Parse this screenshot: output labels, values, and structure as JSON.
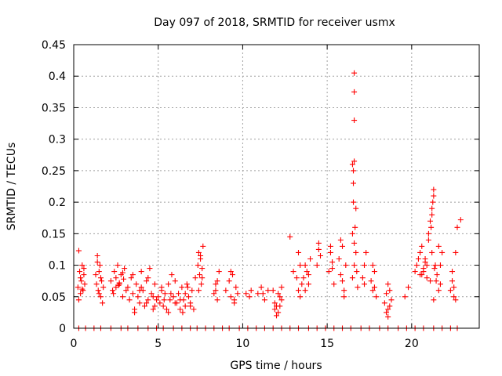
{
  "chart_data": {
    "type": "scatter",
    "title": "Day 097 of 2018, SRMTID for receiver usmx",
    "xlabel": "GPS time / hours",
    "ylabel": "SRMTID / TECUs",
    "xlim": [
      0,
      24
    ],
    "ylim": [
      0,
      0.45
    ],
    "xticks": [
      0,
      5,
      10,
      15,
      20
    ],
    "xtick_labels": [
      "0",
      "5",
      "10",
      "15",
      "20"
    ],
    "yticks": [
      0,
      0.05,
      0.1,
      0.15,
      0.2,
      0.25,
      0.3,
      0.35,
      0.4,
      0.45
    ],
    "ytick_labels": [
      "0",
      "0.05",
      "0.1",
      "0.15",
      "0.2",
      "0.25",
      "0.3",
      "0.35",
      "0.4",
      "0.45"
    ],
    "grid": true,
    "marker": "+",
    "color": "#ff0000",
    "series": [
      {
        "name": "SRMTID",
        "x": [
          0.25,
          0.3,
          0.35,
          0.4,
          0.45,
          0.5,
          0.55,
          0.6,
          0.65,
          0.3,
          0.4,
          0.5,
          0.6,
          1.3,
          1.35,
          1.4,
          1.45,
          1.5,
          1.55,
          1.6,
          1.65,
          1.7,
          1.75,
          1.4,
          1.5,
          1.6,
          2.2,
          2.3,
          2.4,
          2.5,
          2.6,
          2.7,
          2.8,
          2.9,
          3.0,
          3.1,
          2.5,
          2.7,
          2.9,
          2.35,
          2.65,
          2.95,
          3.2,
          3.3,
          3.4,
          3.5,
          3.6,
          3.7,
          3.8,
          3.9,
          4.0,
          4.1,
          4.2,
          4.3,
          4.4,
          4.5,
          4.6,
          4.7,
          4.8,
          4.9,
          3.5,
          3.9,
          4.3,
          4.7,
          3.6,
          4.0,
          4.4,
          4.8,
          5.0,
          5.1,
          5.2,
          5.3,
          5.4,
          5.5,
          5.6,
          5.7,
          5.8,
          5.9,
          6.0,
          5.2,
          5.6,
          6.0,
          5.35,
          5.75,
          6.1,
          6.2,
          6.3,
          6.4,
          6.5,
          6.6,
          6.7,
          6.8,
          6.9,
          7.0,
          7.1,
          7.2,
          6.3,
          6.6,
          6.9,
          6.45,
          6.75,
          7.35,
          7.4,
          7.45,
          7.5,
          7.55,
          7.6,
          7.65,
          7.4,
          7.5,
          7.6,
          8.3,
          8.4,
          8.5,
          8.6,
          8.4,
          8.5,
          9.0,
          9.2,
          9.3,
          9.4,
          9.5,
          9.6,
          9.7,
          9.3,
          9.5,
          10.2,
          10.4,
          10.5,
          10.9,
          11.1,
          11.2,
          11.3,
          11.5,
          11.8,
          11.9,
          12.0,
          12.1,
          12.2,
          12.3,
          11.9,
          12.1,
          12.3,
          12.0,
          12.2,
          12.8,
          13.0,
          13.2,
          13.3,
          13.4,
          13.5,
          13.3,
          13.4,
          13.6,
          13.7,
          13.8,
          13.9,
          14.0,
          13.7,
          13.9,
          14.4,
          14.5,
          14.6,
          14.5,
          15.1,
          15.2,
          15.3,
          15.4,
          15.2,
          15.3,
          15.7,
          15.8,
          15.9,
          16.0,
          16.1,
          15.8,
          15.9,
          16.0,
          16.5,
          16.5,
          16.55,
          16.55,
          16.6,
          16.6,
          16.6,
          16.65,
          16.7,
          16.6,
          16.55,
          16.6,
          16.7,
          16.5,
          16.6,
          16.75,
          16.8,
          17.1,
          17.2,
          17.3,
          17.2,
          17.6,
          17.7,
          17.8,
          17.9,
          17.7,
          17.8,
          18.4,
          18.5,
          18.6,
          18.7,
          18.8,
          18.5,
          18.6,
          18.7,
          18.6,
          19.6,
          19.8,
          20.2,
          20.3,
          20.4,
          20.5,
          20.6,
          20.7,
          20.8,
          20.9,
          21.0,
          21.1,
          20.5,
          20.7,
          20.9,
          20.6,
          20.8,
          21.0,
          21.1,
          21.15,
          21.2,
          21.2,
          21.25,
          21.3,
          21.2,
          21.3,
          21.4,
          21.5,
          21.35,
          21.45,
          21.6,
          21.7,
          21.8,
          21.6,
          21.7,
          21.3,
          22.3,
          22.4,
          22.5,
          22.6,
          22.4,
          22.5,
          22.6,
          22.7,
          22.9,
          0.3,
          0.7,
          1.2,
          1.6,
          2.2,
          2.8,
          3.2,
          3.8,
          4.4,
          4.9,
          5.3,
          5.9,
          6.4,
          6.9,
          7.3,
          7.8,
          8.3,
          8.8,
          9.2,
          9.8,
          10.3,
          10.8,
          11.3,
          11.8,
          12.3,
          12.8,
          13.3,
          13.9,
          14.4,
          14.9,
          15.4,
          15.9,
          16.4,
          17.0,
          17.5,
          18.1,
          18.6,
          19.2,
          19.7,
          20.2,
          20.7,
          21.3,
          21.8,
          22.3,
          22.7
        ],
        "y": [
          0.065,
          0.123,
          0.09,
          0.055,
          0.075,
          0.1,
          0.06,
          0.085,
          0.07,
          0.045,
          0.08,
          0.062,
          0.095,
          0.085,
          0.07,
          0.115,
          0.06,
          0.09,
          0.1,
          0.05,
          0.075,
          0.04,
          0.065,
          0.105,
          0.055,
          0.08,
          0.075,
          0.06,
          0.09,
          0.065,
          0.1,
          0.07,
          0.085,
          0.05,
          0.095,
          0.06,
          0.08,
          0.072,
          0.088,
          0.055,
          0.068,
          0.078,
          0.065,
          0.045,
          0.08,
          0.055,
          0.03,
          0.07,
          0.05,
          0.04,
          0.09,
          0.06,
          0.035,
          0.075,
          0.045,
          0.095,
          0.055,
          0.03,
          0.07,
          0.045,
          0.085,
          0.06,
          0.04,
          0.05,
          0.025,
          0.065,
          0.08,
          0.035,
          0.05,
          0.04,
          0.065,
          0.035,
          0.055,
          0.03,
          0.07,
          0.045,
          0.085,
          0.05,
          0.04,
          0.06,
          0.025,
          0.075,
          0.045,
          0.055,
          0.04,
          0.055,
          0.03,
          0.065,
          0.045,
          0.035,
          0.07,
          0.05,
          0.04,
          0.06,
          0.03,
          0.08,
          0.045,
          0.055,
          0.035,
          0.025,
          0.065,
          0.1,
          0.12,
          0.085,
          0.11,
          0.07,
          0.095,
          0.13,
          0.06,
          0.115,
          0.08,
          0.055,
          0.07,
          0.045,
          0.09,
          0.06,
          0.075,
          0.06,
          0.075,
          0.05,
          0.085,
          0.04,
          0.065,
          0.055,
          0.09,
          0.045,
          0.055,
          0.05,
          0.06,
          0.055,
          0.065,
          0.055,
          0.045,
          0.06,
          0.06,
          0.04,
          0.035,
          0.025,
          0.05,
          0.045,
          0.03,
          0.055,
          0.065,
          0.02,
          0.035,
          0.145,
          0.09,
          0.08,
          0.06,
          0.1,
          0.07,
          0.12,
          0.05,
          0.08,
          0.06,
          0.09,
          0.07,
          0.11,
          0.1,
          0.085,
          0.1,
          0.135,
          0.115,
          0.125,
          0.09,
          0.12,
          0.105,
          0.07,
          0.13,
          0.095,
          0.11,
          0.085,
          0.13,
          0.06,
          0.1,
          0.14,
          0.075,
          0.05,
          0.26,
          0.15,
          0.2,
          0.25,
          0.33,
          0.375,
          0.405,
          0.16,
          0.19,
          0.265,
          0.23,
          0.1,
          0.12,
          0.08,
          0.135,
          0.09,
          0.065,
          0.08,
          0.1,
          0.12,
          0.07,
          0.075,
          0.06,
          0.09,
          0.05,
          0.1,
          0.065,
          0.04,
          0.055,
          0.03,
          0.06,
          0.045,
          0.025,
          0.07,
          0.035,
          0.018,
          0.05,
          0.065,
          0.09,
          0.1,
          0.11,
          0.085,
          0.13,
          0.095,
          0.105,
          0.08,
          0.14,
          0.075,
          0.12,
          0.09,
          0.1,
          0.085,
          0.11,
          0.15,
          0.17,
          0.16,
          0.12,
          0.19,
          0.2,
          0.21,
          0.18,
          0.22,
          0.1,
          0.085,
          0.095,
          0.075,
          0.13,
          0.1,
          0.12,
          0.06,
          0.07,
          0.045,
          0.06,
          0.075,
          0.05,
          0.12,
          0.09,
          0.065,
          0.045,
          0.16,
          0.172,
          0,
          0,
          0,
          0,
          0,
          0,
          0,
          0,
          0,
          0,
          0,
          0,
          0,
          0,
          0,
          0,
          0,
          0,
          0,
          0,
          0,
          0,
          0,
          0,
          0,
          0,
          0,
          0,
          0,
          0,
          0,
          0,
          0,
          0,
          0,
          0,
          0,
          0,
          0,
          0,
          0,
          0,
          0,
          0,
          0
        ]
      }
    ]
  }
}
